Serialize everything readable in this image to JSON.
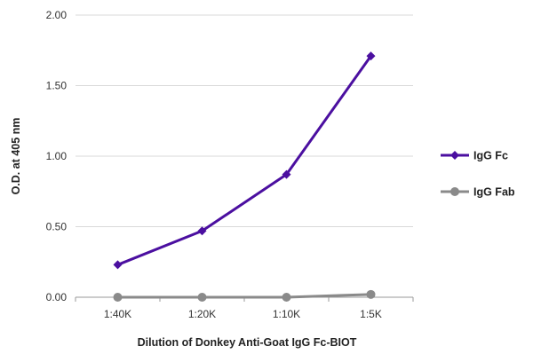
{
  "chart_data": {
    "type": "line",
    "categories": [
      "1:40K",
      "1:20K",
      "1:10K",
      "1:5K"
    ],
    "series": [
      {
        "name": "IgG Fc",
        "values": [
          0.23,
          0.47,
          0.87,
          1.71
        ],
        "color": "#4b0fa0",
        "marker": "diamond"
      },
      {
        "name": "IgG Fab",
        "values": [
          0.0,
          0.0,
          0.0,
          0.02
        ],
        "color": "#8a8a8a",
        "marker": "circle"
      }
    ],
    "yticks": [
      "0.00",
      "0.50",
      "1.00",
      "1.50",
      "2.00"
    ],
    "ylim": [
      0,
      2
    ],
    "xlabel": "Dilution of Donkey Anti-Goat IgG Fc-BIOT",
    "ylabel": "O.D. at 405 nm",
    "grid": "horizontal",
    "legend_position": "right"
  }
}
